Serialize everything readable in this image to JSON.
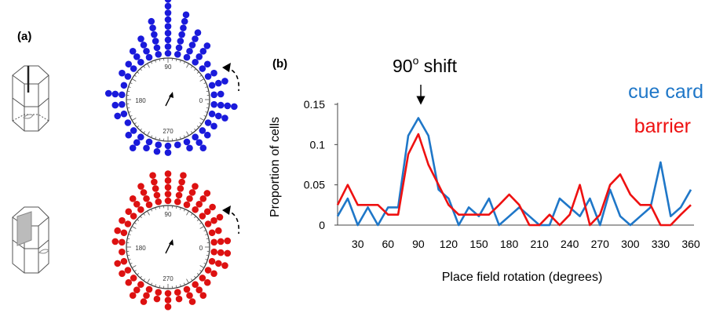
{
  "panel_a": {
    "label": "(a)",
    "top_plot": {
      "color": "#1a1adb",
      "angle_labels": [
        "90",
        "180",
        "0",
        "270"
      ],
      "cell_rotations_deg": [
        90,
        90,
        90,
        90,
        90,
        90,
        90,
        90,
        90,
        90,
        90,
        90,
        90,
        78,
        78,
        78,
        78,
        78,
        78,
        78,
        102,
        102,
        102,
        102,
        102,
        102,
        66,
        66,
        66,
        66,
        66,
        114,
        114,
        114,
        114,
        54,
        54,
        54,
        54,
        126,
        126,
        126,
        42,
        42,
        138,
        138,
        30,
        30,
        150,
        150,
        18,
        18,
        18,
        6,
        6,
        354,
        354,
        354,
        354,
        342,
        342,
        342,
        330,
        330,
        318,
        318,
        306,
        306,
        306,
        294,
        294,
        282,
        270,
        270,
        258,
        258,
        246,
        246,
        234,
        234,
        234,
        222,
        222,
        210,
        198,
        198,
        186,
        186,
        174,
        174,
        174,
        162
      ]
    },
    "bottom_plot": {
      "color": "#dd1111",
      "angle_labels": [
        "90",
        "180",
        "0",
        "270"
      ],
      "cell_rotations_deg": [
        90,
        90,
        90,
        90,
        90,
        78,
        78,
        78,
        78,
        78,
        102,
        102,
        102,
        102,
        102,
        66,
        66,
        66,
        66,
        114,
        114,
        114,
        114,
        54,
        54,
        54,
        54,
        126,
        126,
        126,
        42,
        42,
        42,
        138,
        138,
        30,
        30,
        30,
        150,
        150,
        18,
        18,
        162,
        162,
        6,
        6,
        6,
        354,
        354,
        354,
        342,
        342,
        342,
        330,
        330,
        318,
        318,
        306,
        306,
        306,
        294,
        294,
        294,
        282,
        282,
        270,
        270,
        270,
        258,
        258,
        246,
        246,
        246,
        234,
        234,
        234,
        222,
        222,
        210,
        210,
        198,
        198,
        186,
        174,
        174
      ]
    }
  },
  "panel_b": {
    "label": "(b)",
    "annotation": "90",
    "annotation_superscript": "o",
    "annotation_suffix": " shift",
    "legend": [
      {
        "label": "cue card",
        "color": "#1f77c8"
      },
      {
        "label": "barrier",
        "color": "#ee1111"
      }
    ]
  },
  "chart_data": {
    "type": "line",
    "xlabel": "Place field rotation (degrees)",
    "ylabel": "Proportion of cells",
    "xlim": [
      10,
      360
    ],
    "ylim": [
      0,
      0.15
    ],
    "xticks": [
      30,
      60,
      90,
      120,
      150,
      180,
      210,
      240,
      270,
      300,
      330,
      360
    ],
    "yticks": [
      0,
      0.05,
      0.1,
      0.15
    ],
    "ytick_labels": [
      "0",
      "0.05",
      "0.1",
      "0.15"
    ],
    "x": [
      10,
      20,
      30,
      40,
      50,
      60,
      70,
      80,
      90,
      100,
      110,
      120,
      130,
      140,
      150,
      160,
      170,
      180,
      190,
      200,
      210,
      220,
      230,
      240,
      250,
      260,
      270,
      280,
      290,
      300,
      310,
      320,
      330,
      340,
      350,
      360
    ],
    "series": [
      {
        "name": "cue card",
        "color": "#1f77c8",
        "values": [
          0.011,
          0.033,
          0.0,
          0.022,
          0.0,
          0.022,
          0.022,
          0.111,
          0.133,
          0.111,
          0.044,
          0.033,
          0.0,
          0.022,
          0.011,
          0.033,
          0.0,
          0.011,
          0.022,
          0.011,
          0.0,
          0.0,
          0.033,
          0.022,
          0.011,
          0.033,
          0.0,
          0.044,
          0.011,
          0.0,
          0.011,
          0.022,
          0.078,
          0.011,
          0.022,
          0.044
        ]
      },
      {
        "name": "barrier",
        "color": "#ee1111",
        "values": [
          0.025,
          0.05,
          0.025,
          0.025,
          0.025,
          0.013,
          0.013,
          0.088,
          0.113,
          0.075,
          0.05,
          0.025,
          0.013,
          0.013,
          0.013,
          0.013,
          0.025,
          0.038,
          0.025,
          0.0,
          0.0,
          0.013,
          0.0,
          0.013,
          0.05,
          0.0,
          0.013,
          0.05,
          0.063,
          0.038,
          0.025,
          0.025,
          0.0,
          0.0,
          0.013,
          0.025
        ]
      }
    ]
  }
}
